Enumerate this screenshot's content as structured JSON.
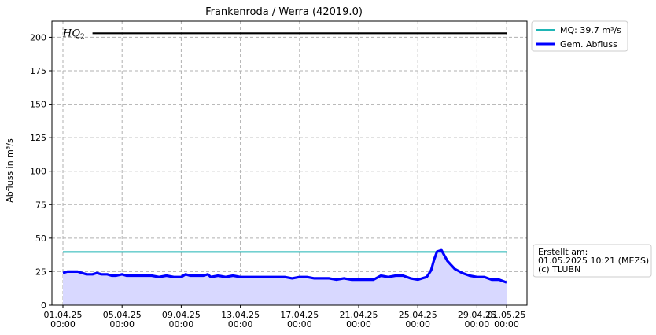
{
  "chart_data": {
    "type": "area",
    "title": "Frankenroda / Werra (42019.0)",
    "ylabel": "Abfluss in m³/s",
    "xlabel": "",
    "ylim": [
      0,
      212
    ],
    "yticks": [
      0,
      25,
      50,
      75,
      100,
      125,
      150,
      175,
      200
    ],
    "x_range_days": [
      0,
      30
    ],
    "xticks": [
      {
        "day": 0,
        "label": "01.04.25",
        "label2": "00:00"
      },
      {
        "day": 4,
        "label": "05.04.25",
        "label2": "00:00"
      },
      {
        "day": 8,
        "label": "09.04.25",
        "label2": "00:00"
      },
      {
        "day": 12,
        "label": "13.04.25",
        "label2": "00:00"
      },
      {
        "day": 16,
        "label": "17.04.25",
        "label2": "00:00"
      },
      {
        "day": 20,
        "label": "21.04.25",
        "label2": "00:00"
      },
      {
        "day": 24,
        "label": "25.04.25",
        "label2": "00:00"
      },
      {
        "day": 28,
        "label": "29.04.25",
        "label2": "00:00"
      },
      {
        "day": 30,
        "label": "01.05.25",
        "label2": "00:00"
      }
    ],
    "grid": true,
    "legend_position": "outside-top-right",
    "series": [
      {
        "name": "Gem. Abfluss",
        "color": "#0000ff",
        "fill": "#d8d8ff",
        "x": [
          0,
          0.3,
          0.6,
          1,
          1.3,
          1.6,
          2,
          2.3,
          2.6,
          3,
          3.3,
          3.6,
          4,
          4.3,
          4.6,
          5,
          5.5,
          6,
          6.5,
          7,
          7.5,
          8,
          8.3,
          8.6,
          9,
          9.5,
          9.8,
          10,
          10.5,
          11,
          11.5,
          12,
          12.5,
          13,
          13.5,
          14,
          14.5,
          15,
          15.5,
          16,
          16.5,
          17,
          17.5,
          18,
          18.5,
          19,
          19.5,
          20,
          20.5,
          21,
          21.5,
          22,
          22.5,
          23,
          23.5,
          24,
          24.3,
          24.6,
          24.9,
          25.1,
          25.3,
          25.6,
          26,
          26.5,
          27,
          27.5,
          28,
          28.5,
          29,
          29.5,
          30
        ],
        "y": [
          24,
          25,
          25,
          25,
          24,
          23,
          23,
          24,
          23,
          23,
          22,
          22,
          23,
          22,
          22,
          22,
          22,
          22,
          21,
          22,
          21,
          21,
          23,
          22,
          22,
          22,
          23,
          21,
          22,
          21,
          22,
          21,
          21,
          21,
          21,
          21,
          21,
          21,
          20,
          21,
          21,
          20,
          20,
          20,
          19,
          20,
          19,
          19,
          19,
          19,
          22,
          21,
          22,
          22,
          20,
          19,
          20,
          21,
          26,
          34,
          40,
          41,
          33,
          27,
          24,
          22,
          21,
          21,
          19,
          19,
          17
        ]
      },
      {
        "name": "MQ: 39.7 m³/s",
        "color": "#1fb5b5",
        "value": 39.7
      }
    ],
    "annotations": [
      {
        "label": "HQ",
        "subscript": "2",
        "value": 203,
        "color": "#000000",
        "x_start_day": 2
      }
    ]
  },
  "info_box": {
    "line1": "Erstellt am:",
    "line2": "01.05.2025 10:21 (MEZS)",
    "line3": "(c) TLUBN"
  }
}
